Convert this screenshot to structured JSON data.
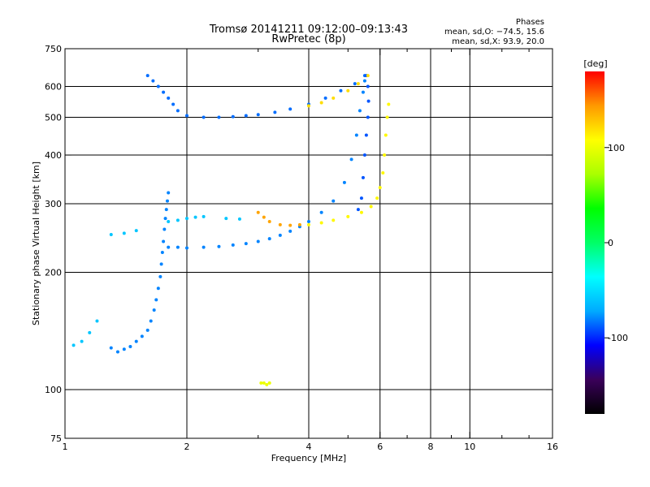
{
  "chart_data": {
    "type": "scatter",
    "title": "Tromsø 20141211 09:12:00–09:13:43",
    "subtitle": "RwPretec (8p)",
    "xlabel": "Frequency [MHz]",
    "ylabel": "Stationary phase Virtual Height [km]",
    "x_scale": "log",
    "y_scale": "log",
    "xlim": [
      1,
      16
    ],
    "ylim": [
      75,
      750
    ],
    "x_ticks": [
      1,
      2,
      4,
      6,
      8,
      10,
      16
    ],
    "y_ticks": [
      75,
      100,
      200,
      300,
      400,
      500,
      600,
      750
    ],
    "x_grid": [
      2,
      4,
      6,
      8,
      10
    ],
    "y_grid": [
      100,
      200,
      300,
      400,
      500,
      600
    ],
    "x_minor_ticks": [
      3,
      5,
      7,
      9,
      12,
      14
    ],
    "colorbar": {
      "label": "[deg]",
      "range": [
        -180,
        180
      ],
      "ticks": [
        100,
        0,
        -100
      ],
      "colors": [
        "#000000",
        "#3a005a",
        "#0000ff",
        "#00aaff",
        "#00ffff",
        "#00ff66",
        "#00ff00",
        "#aaff00",
        "#ffff00",
        "#ff9900",
        "#ff0000"
      ]
    },
    "stats": {
      "heading": "Phases",
      "line_o": "mean, sd,O: −74.5, 15.6",
      "line_x": "mean, sd,X:  93.9, 20.0"
    },
    "traces": [
      {
        "phase": -80,
        "points": [
          [
            1.3,
            128
          ],
          [
            1.35,
            125
          ],
          [
            1.4,
            127
          ],
          [
            1.45,
            129
          ],
          [
            1.5,
            133
          ],
          [
            1.55,
            137
          ],
          [
            1.6,
            142
          ],
          [
            1.63,
            150
          ],
          [
            1.66,
            160
          ],
          [
            1.68,
            170
          ],
          [
            1.7,
            182
          ],
          [
            1.72,
            195
          ],
          [
            1.73,
            210
          ],
          [
            1.74,
            225
          ],
          [
            1.75,
            240
          ],
          [
            1.76,
            258
          ],
          [
            1.77,
            275
          ],
          [
            1.78,
            290
          ],
          [
            1.79,
            305
          ],
          [
            1.8,
            320
          ]
        ]
      },
      {
        "phase": -80,
        "points": [
          [
            1.8,
            232
          ],
          [
            1.9,
            232
          ],
          [
            2.0,
            231
          ],
          [
            2.2,
            232
          ],
          [
            2.4,
            233
          ],
          [
            2.6,
            235
          ],
          [
            2.8,
            237
          ],
          [
            3.0,
            240
          ],
          [
            3.2,
            244
          ],
          [
            3.4,
            249
          ],
          [
            3.6,
            255
          ],
          [
            3.8,
            262
          ],
          [
            4.0,
            270
          ],
          [
            4.3,
            285
          ],
          [
            4.6,
            305
          ],
          [
            4.9,
            340
          ],
          [
            5.1,
            390
          ],
          [
            5.25,
            450
          ],
          [
            5.35,
            520
          ],
          [
            5.45,
            580
          ],
          [
            5.5,
            620
          ]
        ]
      },
      {
        "phase": -85,
        "points": [
          [
            1.6,
            640
          ],
          [
            1.65,
            620
          ],
          [
            1.7,
            600
          ],
          [
            1.75,
            580
          ],
          [
            1.8,
            560
          ],
          [
            1.85,
            540
          ],
          [
            1.9,
            520
          ],
          [
            2.0,
            505
          ],
          [
            2.2,
            500
          ],
          [
            2.4,
            500
          ],
          [
            2.6,
            502
          ],
          [
            2.8,
            505
          ],
          [
            3.0,
            508
          ],
          [
            3.3,
            515
          ],
          [
            3.6,
            525
          ],
          [
            4.0,
            540
          ],
          [
            4.4,
            560
          ],
          [
            4.8,
            585
          ],
          [
            5.2,
            610
          ],
          [
            5.5,
            640
          ]
        ]
      },
      {
        "phase": -90,
        "points": [
          [
            5.55,
            640
          ],
          [
            5.6,
            600
          ],
          [
            5.62,
            550
          ],
          [
            5.6,
            500
          ],
          [
            5.55,
            450
          ],
          [
            5.5,
            400
          ],
          [
            5.45,
            350
          ],
          [
            5.4,
            310
          ],
          [
            5.3,
            290
          ]
        ]
      },
      {
        "phase": 110,
        "points": [
          [
            4.0,
            265
          ],
          [
            4.3,
            268
          ],
          [
            4.6,
            272
          ],
          [
            5.0,
            278
          ],
          [
            5.4,
            285
          ],
          [
            5.7,
            295
          ],
          [
            5.9,
            310
          ],
          [
            6.0,
            330
          ],
          [
            6.1,
            360
          ],
          [
            6.15,
            400
          ],
          [
            6.2,
            450
          ],
          [
            6.25,
            500
          ],
          [
            6.3,
            540
          ]
        ]
      },
      {
        "phase": 140,
        "points": [
          [
            3.0,
            285
          ],
          [
            3.1,
            277
          ],
          [
            3.2,
            270
          ],
          [
            3.4,
            265
          ],
          [
            3.6,
            264
          ],
          [
            3.8,
            265
          ]
        ]
      },
      {
        "phase": 120,
        "points": [
          [
            4.0,
            535
          ],
          [
            4.3,
            545
          ],
          [
            4.6,
            560
          ],
          [
            5.0,
            585
          ],
          [
            5.3,
            610
          ],
          [
            5.6,
            640
          ]
        ]
      },
      {
        "phase": 100,
        "points": [
          [
            3.05,
            104
          ],
          [
            3.1,
            104
          ],
          [
            3.15,
            103
          ],
          [
            3.2,
            104
          ]
        ]
      },
      {
        "phase": -60,
        "points": [
          [
            1.8,
            270
          ],
          [
            1.9,
            272
          ],
          [
            2.0,
            275
          ],
          [
            2.1,
            277
          ],
          [
            2.2,
            278
          ],
          [
            2.5,
            275
          ],
          [
            2.7,
            274
          ]
        ]
      },
      {
        "phase": -60,
        "points": [
          [
            1.05,
            130
          ],
          [
            1.1,
            133
          ],
          [
            1.15,
            140
          ],
          [
            1.2,
            150
          ],
          [
            1.3,
            250
          ],
          [
            1.4,
            252
          ],
          [
            1.5,
            256
          ]
        ]
      }
    ]
  }
}
